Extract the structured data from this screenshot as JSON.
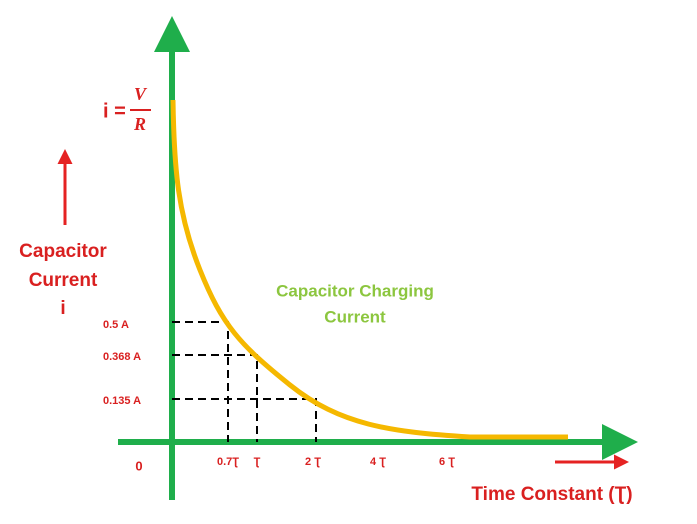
{
  "equation": {
    "lhs": "i =",
    "numerator": "V",
    "denominator": "R"
  },
  "y_axis_label": [
    "Capacitor",
    "Current",
    "i"
  ],
  "curve_label": [
    "Capacitor Charging",
    "Current"
  ],
  "y_labels": [
    "0.5 A",
    "0.368 A",
    "0.135 A"
  ],
  "origin": "0",
  "x_labels": [
    "0.7Ʈ",
    "Ʈ",
    "2 Ʈ",
    "4 Ʈ",
    "6 Ʈ"
  ],
  "x_axis_label": "Time Constant (Ʈ)"
}
